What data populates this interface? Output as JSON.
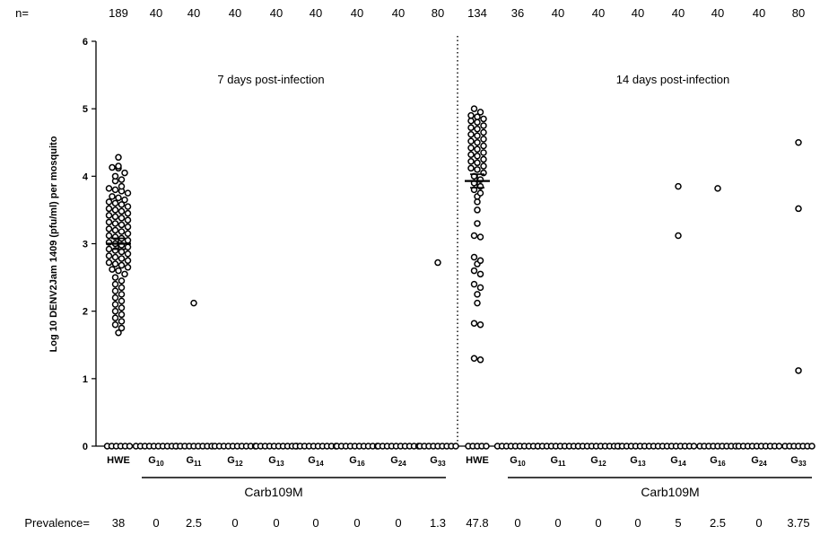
{
  "chart_data": {
    "type": "scatter",
    "ylabel": "Log 10 DENV2Jam 1409 (pfu/ml)  per mosquito",
    "ylim": [
      0,
      6
    ],
    "yticks": [
      "0",
      "1",
      "2",
      "3",
      "4",
      "5",
      "6"
    ],
    "n_label": "n=",
    "prevalence_label": "Prevalence=",
    "group_label": "Carb109M",
    "panels": [
      {
        "title": "7 days post-infection",
        "groups": [
          {
            "label": "HWE",
            "sub": "",
            "n": "189",
            "prevalence": "38",
            "mean": 3.0,
            "sem": 0.08,
            "values": [
              4.28,
              4.15,
              4.13,
              4.12,
              4.05,
              4.0,
              3.95,
              3.93,
              3.85,
              3.82,
              3.8,
              3.78,
              3.75,
              3.7,
              3.68,
              3.65,
              3.62,
              3.6,
              3.58,
              3.55,
              3.52,
              3.5,
              3.48,
              3.45,
              3.42,
              3.4,
              3.38,
              3.35,
              3.32,
              3.3,
              3.28,
              3.25,
              3.22,
              3.2,
              3.18,
              3.15,
              3.12,
              3.1,
              3.08,
              3.05,
              3.02,
              3.0,
              2.98,
              2.95,
              2.92,
              2.9,
              2.88,
              2.85,
              2.82,
              2.8,
              2.78,
              2.75,
              2.72,
              2.7,
              2.68,
              2.65,
              2.62,
              2.6,
              2.55,
              2.5,
              2.45,
              2.4,
              2.35,
              2.3,
              2.25,
              2.2,
              2.15,
              2.1,
              2.05,
              2.0,
              1.95,
              1.9,
              1.85,
              1.8,
              1.75,
              1.68,
              0,
              0,
              0,
              0,
              0,
              0
            ]
          },
          {
            "label": "G",
            "sub": "10",
            "n": "40",
            "prevalence": "0",
            "values": [
              0,
              0,
              0,
              0,
              0,
              0,
              0,
              0,
              0,
              0
            ]
          },
          {
            "label": "G",
            "sub": "11",
            "n": "40",
            "prevalence": "2.5",
            "values": [
              2.12,
              0,
              0,
              0,
              0,
              0,
              0,
              0,
              0,
              0
            ]
          },
          {
            "label": "G",
            "sub": "12",
            "n": "40",
            "prevalence": "0",
            "values": [
              0,
              0,
              0,
              0,
              0,
              0,
              0,
              0,
              0,
              0
            ]
          },
          {
            "label": "G",
            "sub": "13",
            "n": "40",
            "prevalence": "0",
            "values": [
              0,
              0,
              0,
              0,
              0,
              0,
              0,
              0,
              0,
              0
            ]
          },
          {
            "label": "G",
            "sub": "14",
            "n": "40",
            "prevalence": "0",
            "values": [
              0,
              0,
              0,
              0,
              0,
              0,
              0,
              0,
              0,
              0
            ]
          },
          {
            "label": "G",
            "sub": "16",
            "n": "40",
            "prevalence": "0",
            "values": [
              0,
              0,
              0,
              0,
              0,
              0,
              0,
              0,
              0,
              0
            ]
          },
          {
            "label": "G",
            "sub": "24",
            "n": "40",
            "prevalence": "0",
            "values": [
              0,
              0,
              0,
              0,
              0,
              0,
              0,
              0,
              0,
              0
            ]
          },
          {
            "label": "G",
            "sub": "33",
            "n": "80",
            "prevalence": "1.3",
            "values": [
              2.72,
              0,
              0,
              0,
              0,
              0,
              0,
              0,
              0,
              0
            ]
          }
        ]
      },
      {
        "title": "14 days post-infection",
        "groups": [
          {
            "label": "HWE",
            "sub": "",
            "n": "134",
            "prevalence": "47.8",
            "mean": 3.93,
            "sem": 0.1,
            "values": [
              5.0,
              4.95,
              4.9,
              4.88,
              4.85,
              4.82,
              4.8,
              4.75,
              4.72,
              4.7,
              4.65,
              4.62,
              4.6,
              4.55,
              4.52,
              4.5,
              4.45,
              4.42,
              4.4,
              4.35,
              4.32,
              4.3,
              4.25,
              4.22,
              4.2,
              4.15,
              4.12,
              4.1,
              4.05,
              4.0,
              3.95,
              3.9,
              3.85,
              3.8,
              3.75,
              3.7,
              3.62,
              3.5,
              3.3,
              3.12,
              3.1,
              2.8,
              2.75,
              2.7,
              2.6,
              2.55,
              2.4,
              2.35,
              2.25,
              2.12,
              1.82,
              1.8,
              1.3,
              1.28,
              0,
              0,
              0,
              0,
              0
            ]
          },
          {
            "label": "G",
            "sub": "10",
            "n": "36",
            "prevalence": "0",
            "values": [
              0,
              0,
              0,
              0,
              0,
              0,
              0,
              0,
              0,
              0
            ]
          },
          {
            "label": "G",
            "sub": "11",
            "n": "40",
            "prevalence": "0",
            "values": [
              0,
              0,
              0,
              0,
              0,
              0,
              0,
              0,
              0,
              0
            ]
          },
          {
            "label": "G",
            "sub": "12",
            "n": "40",
            "prevalence": "0",
            "values": [
              0,
              0,
              0,
              0,
              0,
              0,
              0,
              0,
              0,
              0
            ]
          },
          {
            "label": "G",
            "sub": "13",
            "n": "40",
            "prevalence": "0",
            "values": [
              0,
              0,
              0,
              0,
              0,
              0,
              0,
              0,
              0,
              0
            ]
          },
          {
            "label": "G",
            "sub": "14",
            "n": "40",
            "prevalence": "5",
            "values": [
              3.85,
              3.12,
              0,
              0,
              0,
              0,
              0,
              0,
              0,
              0
            ]
          },
          {
            "label": "G",
            "sub": "16",
            "n": "40",
            "prevalence": "2.5",
            "values": [
              3.82,
              0,
              0,
              0,
              0,
              0,
              0,
              0,
              0,
              0
            ]
          },
          {
            "label": "G",
            "sub": "24",
            "n": "40",
            "prevalence": "0",
            "values": [
              0,
              0,
              0,
              0,
              0,
              0,
              0,
              0,
              0,
              0
            ]
          },
          {
            "label": "G",
            "sub": "33",
            "n": "80",
            "prevalence": "3.75",
            "values": [
              4.5,
              3.52,
              1.12,
              0,
              0,
              0,
              0,
              0,
              0,
              0
            ]
          }
        ]
      }
    ]
  }
}
